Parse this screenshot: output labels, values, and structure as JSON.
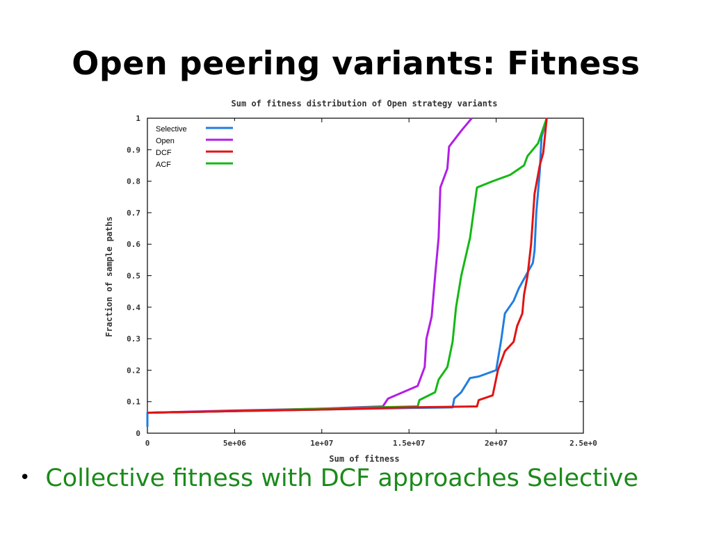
{
  "slide": {
    "title": "Open peering variants: Fitness",
    "bullet": "Collective fitness with DCF approaches Selective"
  },
  "colors": {
    "Selective": "#1f7ee0",
    "Open": "#b21ee6",
    "DCF": "#e01414",
    "ACF": "#14b814",
    "bullet_text": "#1a8a1a"
  },
  "chart_data": {
    "type": "line",
    "title": "Sum of fitness distribution of Open strategy variants",
    "xlabel": "Sum of fitness",
    "ylabel": "Fraction of sample paths",
    "xlim": [
      0,
      25000000
    ],
    "ylim": [
      0,
      1
    ],
    "x_ticks": [
      "0",
      "5e+06",
      "1e+07",
      "1.5e+07",
      "2e+07",
      "2.5e+0"
    ],
    "y_ticks": [
      "0",
      "0.1",
      "0.2",
      "0.3",
      "0.4",
      "0.5",
      "0.6",
      "0.7",
      "0.8",
      "0.9",
      "1"
    ],
    "grid": false,
    "legend": "top-left",
    "series": [
      {
        "name": "Selective",
        "color": "#1f7ee0",
        "points": [
          [
            0,
            0.02
          ],
          [
            0,
            0.065
          ],
          [
            5000000,
            0.07
          ],
          [
            10000000,
            0.075
          ],
          [
            15000000,
            0.08
          ],
          [
            17500000,
            0.082
          ],
          [
            17600000,
            0.11
          ],
          [
            18000000,
            0.13
          ],
          [
            18500000,
            0.175
          ],
          [
            19000000,
            0.18
          ],
          [
            20000000,
            0.2
          ],
          [
            20300000,
            0.3
          ],
          [
            20500000,
            0.38
          ],
          [
            21000000,
            0.42
          ],
          [
            21300000,
            0.46
          ],
          [
            21700000,
            0.5
          ],
          [
            22100000,
            0.54
          ],
          [
            22200000,
            0.58
          ],
          [
            22300000,
            0.7
          ],
          [
            22500000,
            0.83
          ],
          [
            22600000,
            0.94
          ],
          [
            22900000,
            1.0
          ]
        ]
      },
      {
        "name": "Open",
        "color": "#b21ee6",
        "points": [
          [
            0,
            0.065
          ],
          [
            5000000,
            0.072
          ],
          [
            10000000,
            0.078
          ],
          [
            13500000,
            0.085
          ],
          [
            13800000,
            0.11
          ],
          [
            15500000,
            0.15
          ],
          [
            15900000,
            0.21
          ],
          [
            16000000,
            0.3
          ],
          [
            16300000,
            0.37
          ],
          [
            16500000,
            0.5
          ],
          [
            16700000,
            0.62
          ],
          [
            16800000,
            0.78
          ],
          [
            17200000,
            0.84
          ],
          [
            17300000,
            0.91
          ],
          [
            18000000,
            0.96
          ],
          [
            18600000,
            1.0
          ]
        ]
      },
      {
        "name": "DCF",
        "color": "#e01414",
        "points": [
          [
            0,
            0.065
          ],
          [
            5000000,
            0.07
          ],
          [
            10000000,
            0.075
          ],
          [
            15000000,
            0.082
          ],
          [
            18900000,
            0.085
          ],
          [
            19000000,
            0.105
          ],
          [
            19800000,
            0.12
          ],
          [
            20100000,
            0.2
          ],
          [
            20500000,
            0.26
          ],
          [
            21000000,
            0.29
          ],
          [
            21200000,
            0.34
          ],
          [
            21500000,
            0.38
          ],
          [
            21600000,
            0.44
          ],
          [
            21800000,
            0.5
          ],
          [
            22000000,
            0.6
          ],
          [
            22200000,
            0.76
          ],
          [
            22500000,
            0.85
          ],
          [
            22700000,
            0.89
          ],
          [
            22900000,
            1.0
          ]
        ]
      },
      {
        "name": "ACF",
        "color": "#14b814",
        "points": [
          [
            0,
            0.065
          ],
          [
            5000000,
            0.07
          ],
          [
            10000000,
            0.078
          ],
          [
            15500000,
            0.085
          ],
          [
            15600000,
            0.105
          ],
          [
            16500000,
            0.13
          ],
          [
            16700000,
            0.17
          ],
          [
            17200000,
            0.21
          ],
          [
            17500000,
            0.29
          ],
          [
            17700000,
            0.4
          ],
          [
            18000000,
            0.5
          ],
          [
            18500000,
            0.62
          ],
          [
            18700000,
            0.7
          ],
          [
            18900000,
            0.78
          ],
          [
            19800000,
            0.8
          ],
          [
            20800000,
            0.82
          ],
          [
            21600000,
            0.85
          ],
          [
            21800000,
            0.88
          ],
          [
            22400000,
            0.92
          ],
          [
            22900000,
            1.0
          ]
        ]
      }
    ]
  }
}
